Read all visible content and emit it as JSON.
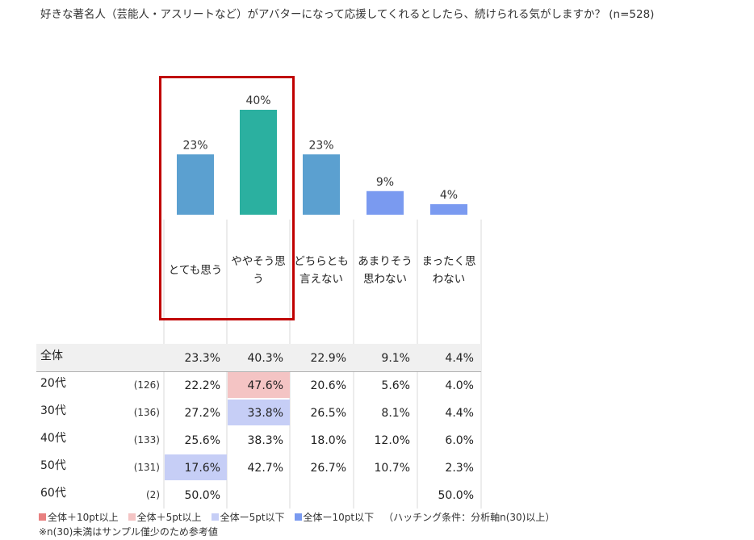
{
  "title": "好きな著名人（芸能人・アスリートなど）がアバターになって応援してくれるとしたら、続けられる気がしますか？ (n=528)",
  "chart_data": {
    "type": "bar",
    "categories": [
      "とても思う",
      "ややそう思う",
      "どちらとも言えない",
      "あまりそう思わない",
      "まったく思わない"
    ],
    "values": [
      23,
      40,
      23,
      9,
      4
    ],
    "value_labels": [
      "23%",
      "40%",
      "23%",
      "9%",
      "4%"
    ],
    "bar_colors": [
      "#5ba0d0",
      "#2bb0a0",
      "#5ba0d0",
      "#7a9af0",
      "#7a9af0"
    ],
    "ylim": [
      0,
      40
    ],
    "grid": false,
    "highlight_categories": [
      "とても思う",
      "ややそう思う"
    ],
    "highlight_color": "#c00000"
  },
  "table": {
    "rows": [
      {
        "label": "全体",
        "n": "",
        "cells": [
          "23.3%",
          "40.3%",
          "22.9%",
          "9.1%",
          "4.4%"
        ],
        "shade": [
          "",
          "",
          "",
          "",
          ""
        ]
      },
      {
        "label": "20代",
        "n": "(126)",
        "cells": [
          "22.2%",
          "47.6%",
          "20.6%",
          "5.6%",
          "4.0%"
        ],
        "shade": [
          "",
          "plus5",
          "",
          "",
          ""
        ]
      },
      {
        "label": "30代",
        "n": "(136)",
        "cells": [
          "27.2%",
          "33.8%",
          "26.5%",
          "8.1%",
          "4.4%"
        ],
        "shade": [
          "",
          "minus5",
          "",
          "",
          ""
        ]
      },
      {
        "label": "40代",
        "n": "(133)",
        "cells": [
          "25.6%",
          "38.3%",
          "18.0%",
          "12.0%",
          "6.0%"
        ],
        "shade": [
          "",
          "",
          "",
          "",
          ""
        ]
      },
      {
        "label": "50代",
        "n": "(131)",
        "cells": [
          "17.6%",
          "42.7%",
          "26.7%",
          "10.7%",
          "2.3%"
        ],
        "shade": [
          "minus5",
          "",
          "",
          "",
          ""
        ]
      },
      {
        "label": "60代",
        "n": "(2)",
        "cells": [
          "50.0%",
          "",
          "",
          "",
          "50.0%"
        ],
        "shade": [
          "",
          "",
          "",
          "",
          ""
        ]
      }
    ],
    "colors": {
      "plus10": "#e88080",
      "plus5": "#f4c4c4",
      "minus5": "#c6cef6",
      "minus10": "#7a9af0",
      "total_row": "#f0f0f0"
    }
  },
  "legend": {
    "items": [
      {
        "label": "全体＋10pt以上",
        "color": "#e88080"
      },
      {
        "label": "全体＋5pt以上",
        "color": "#f4c4c4"
      },
      {
        "label": "全体ー5pt以下",
        "color": "#c6cef6"
      },
      {
        "label": "全体ー10pt以下",
        "color": "#7a9af0"
      }
    ],
    "condition": "（ハッチング条件：分析軸n(30)以上）"
  },
  "note": "※n(30)未満はサンプル僅少のため参考値"
}
